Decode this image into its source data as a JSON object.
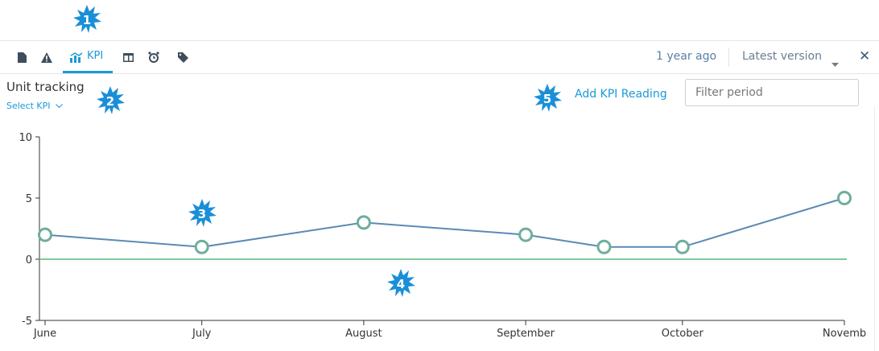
{
  "toolbar": {
    "icons": [
      "document-icon",
      "warning-icon",
      "kpi-chart-icon",
      "table-icon",
      "alarm-icon",
      "tag-icon"
    ],
    "active_tab_label": "KPI",
    "timestamp": "1 year ago",
    "version_label": "Latest version",
    "close_symbol": "✕"
  },
  "annotations": [
    "1",
    "2",
    "3",
    "4",
    "5"
  ],
  "panel": {
    "title": "Unit tracking",
    "select_kpi_label": "Select KPI",
    "add_kpi_label": "Add KPI Reading",
    "filter_placeholder": "Filter period"
  },
  "colors": {
    "accent": "#1a9ad6",
    "series_line": "#5b8ab5",
    "marker_stroke": "#6fae9a",
    "zero_line": "#7ccc98",
    "badge": "#1a8fd8"
  },
  "chart_data": {
    "type": "line",
    "x": [
      "2021-06-01",
      "2021-07-01",
      "2021-08-01",
      "2021-09-01",
      "2021-09-16",
      "2021-10-01",
      "2021-11-01"
    ],
    "tick_labels": [
      "June",
      "July",
      "August",
      "September",
      "October",
      "Novemb"
    ],
    "tick_dates": [
      "2021-06-01",
      "2021-07-01",
      "2021-08-01",
      "2021-09-01",
      "2021-10-01",
      "2021-11-01"
    ],
    "series": [
      {
        "values": [
          2,
          1,
          3,
          2,
          1,
          1,
          5
        ]
      }
    ],
    "reference_line": 0,
    "y_ticks": [
      "10",
      "5",
      "0",
      "-5"
    ],
    "ylim": [
      -5,
      10
    ],
    "grid": false,
    "title": "",
    "xlabel": "",
    "ylabel": ""
  }
}
